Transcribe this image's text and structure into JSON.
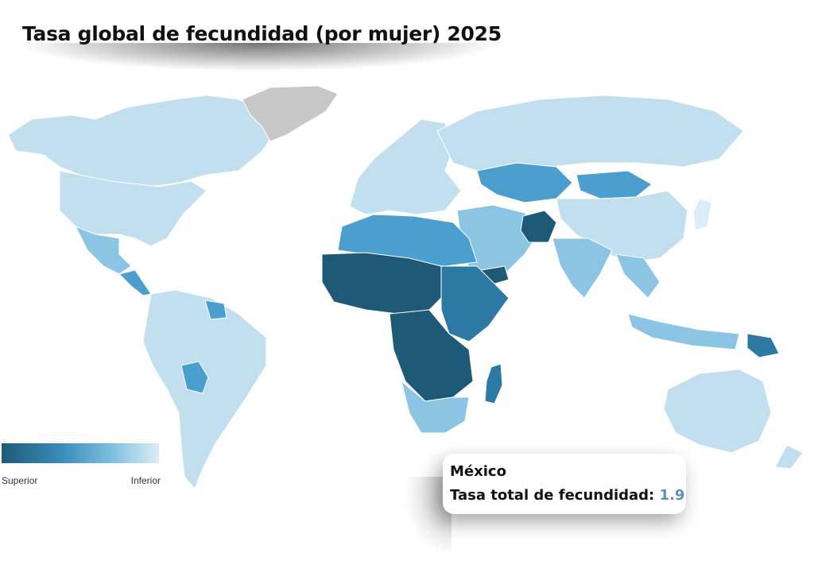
{
  "title": "Tasa global de fecundidad (por mujer)  2025",
  "legend": {
    "high_label": "Superior",
    "low_label": "Inferior",
    "colors": [
      "#1e5a78",
      "#3d8fbd",
      "#7fbfe0",
      "#dcedf7"
    ]
  },
  "tooltip": {
    "country": "México",
    "metric_label": "Tasa total de fecundidad:",
    "value": "1.9"
  },
  "map_colors": {
    "very_high": "#1e5a78",
    "high": "#2c79a3",
    "mid": "#4b9fcf",
    "low_mid": "#8cc4e3",
    "low": "#c2dff0",
    "very_low": "#dcedf7",
    "no_data": "#c8c8c8"
  }
}
